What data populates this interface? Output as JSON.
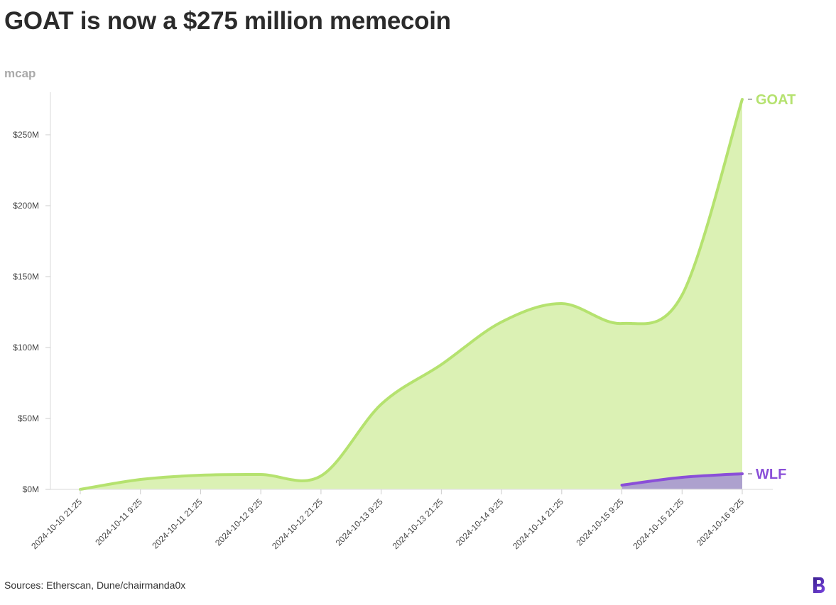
{
  "title": "GOAT is now a $275 million memecoin",
  "source": "Sources: Etherscan, Dune/chairmanda0x",
  "chart_data": {
    "type": "area",
    "title": "GOAT is now a $275 million memecoin",
    "ylabel": "mcap",
    "xlabel": "",
    "ylim": [
      0,
      280
    ],
    "y_unit": "$M",
    "y_ticks": [
      0,
      50,
      100,
      150,
      200,
      250
    ],
    "y_tick_labels": [
      "$0M",
      "$50M",
      "$100M",
      "$150M",
      "$200M",
      "$250M"
    ],
    "categories": [
      "2024-10-10 21:25",
      "2024-10-11 9:25",
      "2024-10-11 21:25",
      "2024-10-12 9:25",
      "2024-10-12 21:25",
      "2024-10-13 9:25",
      "2024-10-13 21:25",
      "2024-10-14 9:25",
      "2024-10-14 21:25",
      "2024-10-15 9:25",
      "2024-10-15 21:25",
      "2024-10-16 9:25"
    ],
    "grid": false,
    "legend": "end-of-line labels",
    "series": [
      {
        "name": "GOAT",
        "color": "#b5e26f",
        "fill": "#d9f0b0",
        "values": [
          0,
          7,
          10,
          10.5,
          9.5,
          60,
          88,
          118,
          131,
          117,
          137,
          275
        ]
      },
      {
        "name": "WLF",
        "color": "#8a4fd8",
        "fill": "#ab9cd0",
        "values": [
          null,
          null,
          null,
          null,
          null,
          null,
          null,
          null,
          null,
          3,
          8.5,
          11
        ]
      }
    ]
  },
  "logo_icon": "b-logo-icon"
}
